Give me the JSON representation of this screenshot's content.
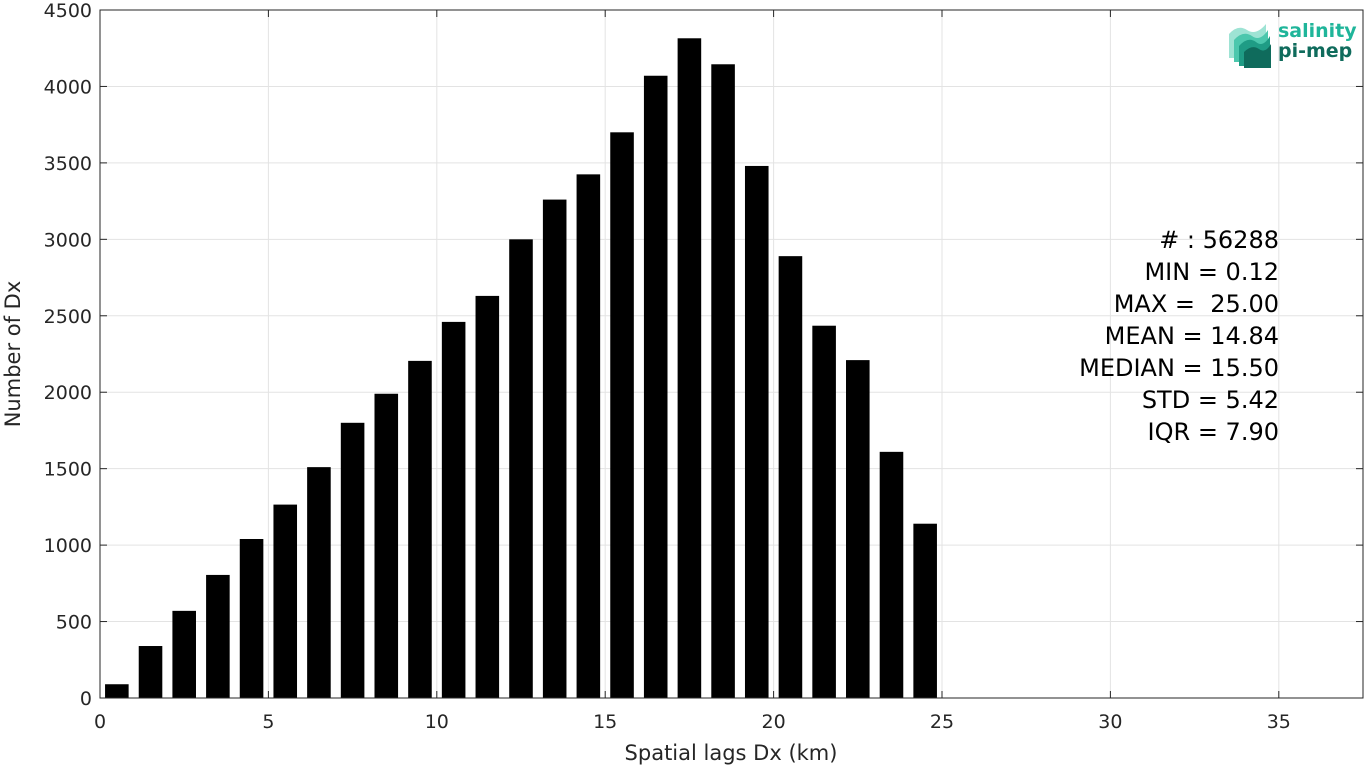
{
  "chart_data": {
    "type": "bar",
    "xlabel": "Spatial lags Dx (km)",
    "ylabel": "Number of Dx",
    "xlim": [
      0,
      37.5
    ],
    "ylim": [
      0,
      4500
    ],
    "xticks": [
      0,
      5,
      10,
      15,
      20,
      25,
      30,
      35
    ],
    "yticks": [
      0,
      500,
      1000,
      1500,
      2000,
      2500,
      3000,
      3500,
      4000,
      4500
    ],
    "grid": true,
    "bar_width": 0.7,
    "color": "#000000",
    "x": [
      0.5,
      1.5,
      2.5,
      3.5,
      4.5,
      5.5,
      6.5,
      7.5,
      8.5,
      9.5,
      10.5,
      11.5,
      12.5,
      13.5,
      14.5,
      15.5,
      16.5,
      17.5,
      18.5,
      19.5,
      20.5,
      21.5,
      22.5,
      23.5,
      24.5
    ],
    "values": [
      90,
      340,
      570,
      805,
      1040,
      1265,
      1510,
      1800,
      1990,
      2205,
      2460,
      2630,
      3000,
      3260,
      3425,
      3700,
      4070,
      4315,
      4145,
      3480,
      2890,
      2435,
      2210,
      1610,
      1140
    ],
    "annotations": [
      "# : 56288",
      "MIN = 0.12",
      "MAX =  25.00",
      "MEAN = 14.84",
      "MEDIAN = 15.50",
      "STD = 5.42",
      "IQR = 7.90"
    ]
  },
  "logo": {
    "line1": "salinity",
    "line2": "pi-mep",
    "color1": "#1fb59a",
    "color2": "#0f6b5c"
  }
}
